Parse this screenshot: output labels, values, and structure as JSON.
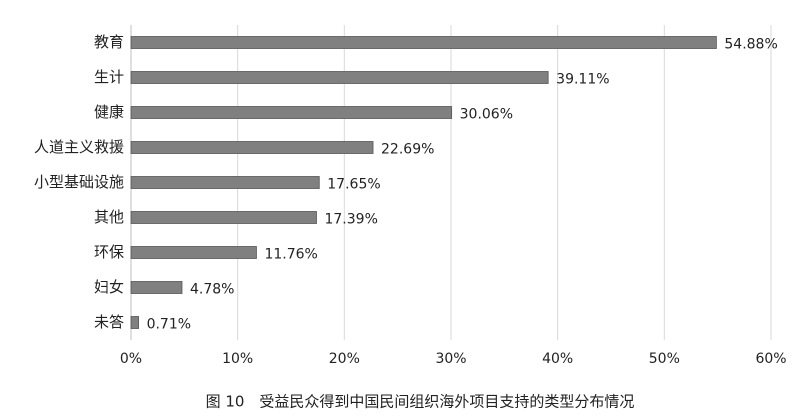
{
  "chart_data": {
    "type": "barh",
    "title": "图 10　受益民众得到中国民间组织海外项目支持的类型分布情况",
    "categories": [
      "教育",
      "生计",
      "健康",
      "人道主义救援",
      "小型基础设施",
      "其他",
      "环保",
      "妇女",
      "未答"
    ],
    "values": [
      54.88,
      39.11,
      30.06,
      22.69,
      17.65,
      17.39,
      11.76,
      4.78,
      0.71
    ],
    "value_labels": [
      "54.88%",
      "39.11%",
      "30.06%",
      "22.69%",
      "17.65%",
      "17.39%",
      "11.76%",
      "4.78%",
      "0.71%"
    ],
    "color": "#808080",
    "xlim": [
      0,
      60
    ],
    "xticks": [
      {
        "value": 0,
        "label": "0%"
      },
      {
        "value": 10,
        "label": "10%"
      },
      {
        "value": 20,
        "label": "20%"
      },
      {
        "value": 30,
        "label": "30%"
      },
      {
        "value": 40,
        "label": "40%"
      },
      {
        "value": 50,
        "label": "50%"
      },
      {
        "value": 60,
        "label": "60%"
      }
    ],
    "grid": true
  }
}
